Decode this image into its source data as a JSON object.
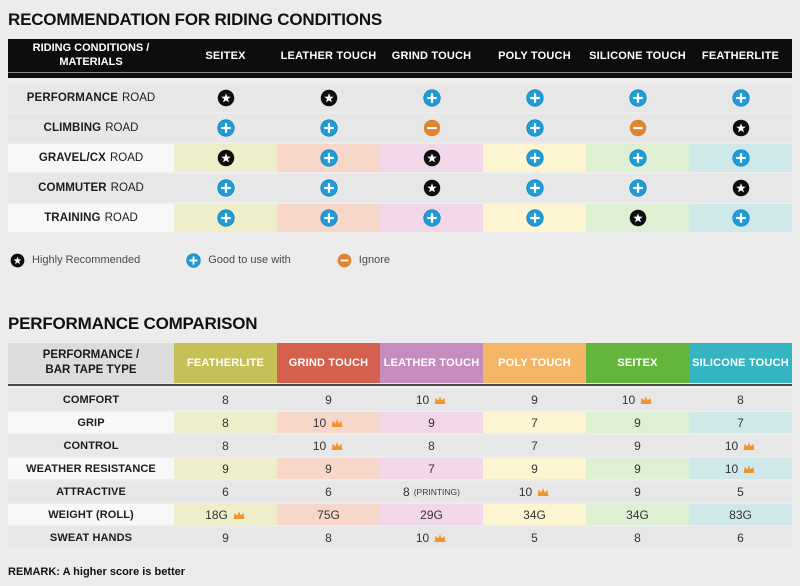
{
  "colors": {
    "page_bg": "#ececec",
    "header_black": "#0d0d0d",
    "gray_row": "#e7e7e8",
    "light_label_cell": "#f8f8f8",
    "corner_gray": "#dcdcdc",
    "column_tints": [
      "#eeeecb",
      "#f8d7cb",
      "#f2d7ea",
      "#fdf4d1",
      "#def0d3",
      "#cfe9ea"
    ],
    "star_icon": "#0d0d0d",
    "plus_icon": "#1f9cd7",
    "plus_icon_ring": "#1783ba",
    "minus_icon": "#e0852f",
    "crown_icon": "#f0932a"
  },
  "chart_data": [
    {
      "type": "table",
      "title": "RECOMMENDATION FOR RIDING CONDITIONS",
      "corner": [
        "RIDING CONDITIONS /",
        "MATERIALS"
      ],
      "columns": [
        "SEITEX",
        "LEATHER TOUCH",
        "GRIND TOUCH",
        "POLY TOUCH",
        "SILICONE TOUCH",
        "FEATHERLITE"
      ],
      "rows": [
        {
          "bold": "PERFORMANCE",
          "rest": "ROAD",
          "tinted": false,
          "cells": [
            "star",
            "star",
            "plus",
            "plus",
            "plus",
            "plus"
          ]
        },
        {
          "bold": "CLIMBING",
          "rest": "ROAD",
          "tinted": false,
          "cells": [
            "plus",
            "plus",
            "minus",
            "plus",
            "minus",
            "star"
          ]
        },
        {
          "bold": "GRAVEL/CX",
          "rest": "ROAD",
          "tinted": true,
          "cells": [
            "star",
            "plus",
            "star",
            "plus",
            "plus",
            "plus"
          ]
        },
        {
          "bold": "COMMUTER",
          "rest": "ROAD",
          "tinted": false,
          "cells": [
            "plus",
            "plus",
            "star",
            "plus",
            "plus",
            "star"
          ]
        },
        {
          "bold": "TRAINING",
          "rest": "ROAD",
          "tinted": true,
          "cells": [
            "plus",
            "plus",
            "plus",
            "plus",
            "star",
            "plus"
          ]
        }
      ],
      "legend": [
        {
          "icon": "star",
          "label": "Highly Recommended"
        },
        {
          "icon": "plus",
          "label": "Good to use with"
        },
        {
          "icon": "minus",
          "label": "Ignore"
        }
      ],
      "icon_meanings": {
        "star": "Highly Recommended",
        "plus": "Good to use with",
        "minus": "Ignore"
      }
    },
    {
      "type": "table",
      "title": "PERFORMANCE COMPARISON",
      "corner": [
        "PERFORMANCE /",
        "BAR TAPE TYPE"
      ],
      "columns": [
        "FEATHERLITE",
        "GRIND TOUCH",
        "LEATHER TOUCH",
        "POLY TOUCH",
        "SEITEX",
        "SILICONE TOUCH"
      ],
      "header_colors": [
        "#c6c157",
        "#d4604d",
        "#c78cbe",
        "#f5b566",
        "#64b53c",
        "#35b4c1"
      ],
      "rows": [
        {
          "label": "COMFORT",
          "tinted": false,
          "cells": [
            {
              "v": "8"
            },
            {
              "v": "9"
            },
            {
              "v": "10",
              "crown": true
            },
            {
              "v": "9"
            },
            {
              "v": "10",
              "crown": true
            },
            {
              "v": "8"
            }
          ]
        },
        {
          "label": "GRIP",
          "tinted": true,
          "cells": [
            {
              "v": "8"
            },
            {
              "v": "10",
              "crown": true
            },
            {
              "v": "9"
            },
            {
              "v": "7"
            },
            {
              "v": "9"
            },
            {
              "v": "7"
            }
          ]
        },
        {
          "label": "CONTROL",
          "tinted": false,
          "cells": [
            {
              "v": "8"
            },
            {
              "v": "10",
              "crown": true
            },
            {
              "v": "8"
            },
            {
              "v": "7"
            },
            {
              "v": "9"
            },
            {
              "v": "10",
              "crown": true
            }
          ]
        },
        {
          "label": "WEATHER RESISTANCE",
          "tinted": true,
          "cells": [
            {
              "v": "9"
            },
            {
              "v": "9"
            },
            {
              "v": "7"
            },
            {
              "v": "9"
            },
            {
              "v": "9"
            },
            {
              "v": "10",
              "crown": true
            }
          ]
        },
        {
          "label": "ATTRACTIVE",
          "tinted": false,
          "cells": [
            {
              "v": "6"
            },
            {
              "v": "6"
            },
            {
              "v": "8",
              "suffix": "(PRINTING)"
            },
            {
              "v": "10",
              "crown": true
            },
            {
              "v": "9"
            },
            {
              "v": "5"
            }
          ]
        },
        {
          "label": "WEIGHT (ROLL)",
          "tinted": true,
          "cells": [
            {
              "v": "18G",
              "crown": true
            },
            {
              "v": "75G"
            },
            {
              "v": "29G"
            },
            {
              "v": "34G"
            },
            {
              "v": "34G"
            },
            {
              "v": "83G"
            }
          ]
        },
        {
          "label": "SWEAT HANDS",
          "tinted": false,
          "cells": [
            {
              "v": "9"
            },
            {
              "v": "8"
            },
            {
              "v": "10",
              "crown": true
            },
            {
              "v": "5"
            },
            {
              "v": "8"
            },
            {
              "v": "6"
            }
          ]
        }
      ],
      "remark": "REMARK: A higher score is better"
    }
  ]
}
